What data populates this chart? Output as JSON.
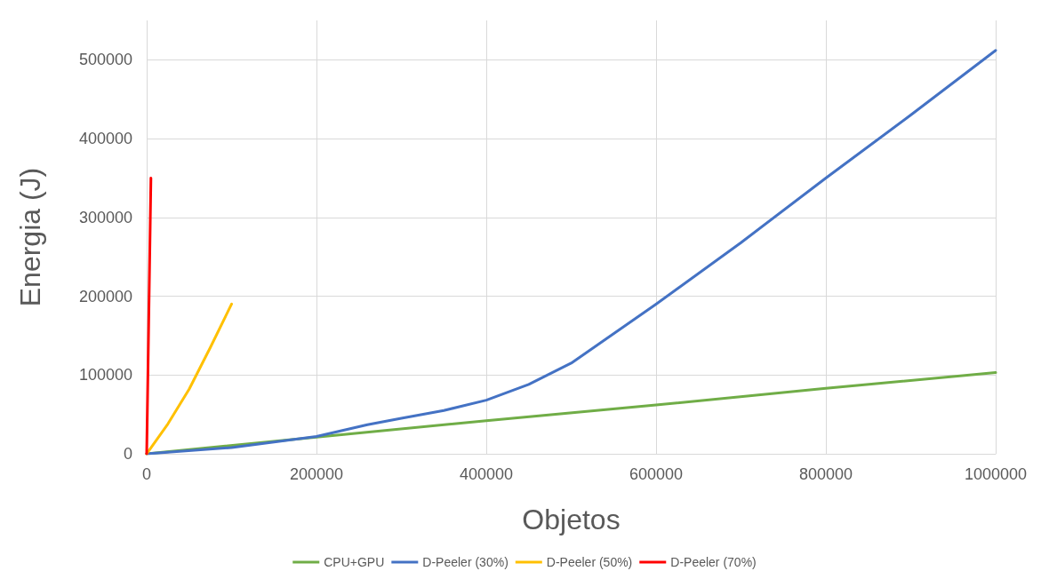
{
  "chart_data": {
    "type": "line",
    "xlabel": "Objetos",
    "ylabel": "Energia (J)",
    "xlim": [
      0,
      1000000
    ],
    "xticks": [
      0,
      200000,
      400000,
      600000,
      800000,
      1000000
    ],
    "ylim": [
      0,
      550000
    ],
    "yticks": [
      0,
      100000,
      200000,
      300000,
      400000,
      500000
    ],
    "grid": true,
    "legend": "bottom",
    "marker": "none",
    "line_style": "solid",
    "series": [
      {
        "name": "CPU+GPU",
        "color": "#70ad47",
        "x": [
          0,
          200000,
          400000,
          600000,
          800000,
          1000000
        ],
        "values": [
          0,
          21000,
          42000,
          62000,
          83000,
          103000
        ]
      },
      {
        "name": "D-Peeler (30%)",
        "color": "#4472c4",
        "x": [
          0,
          100000,
          200000,
          260000,
          300000,
          350000,
          400000,
          450000,
          500000,
          600000,
          700000,
          800000,
          900000,
          1000000
        ],
        "values": [
          0,
          8000,
          22000,
          37000,
          45000,
          55000,
          68000,
          88000,
          115000,
          190000,
          268000,
          350000,
          430000,
          512000
        ]
      },
      {
        "name": "D-Peeler (50%)",
        "color": "#ffc000",
        "x": [
          0,
          25000,
          50000,
          75000,
          100000
        ],
        "values": [
          0,
          38000,
          82000,
          135000,
          190000
        ]
      },
      {
        "name": "D-Peeler (70%)",
        "color": "#ff0000",
        "x": [
          0,
          5000
        ],
        "values": [
          0,
          350000
        ]
      }
    ]
  }
}
